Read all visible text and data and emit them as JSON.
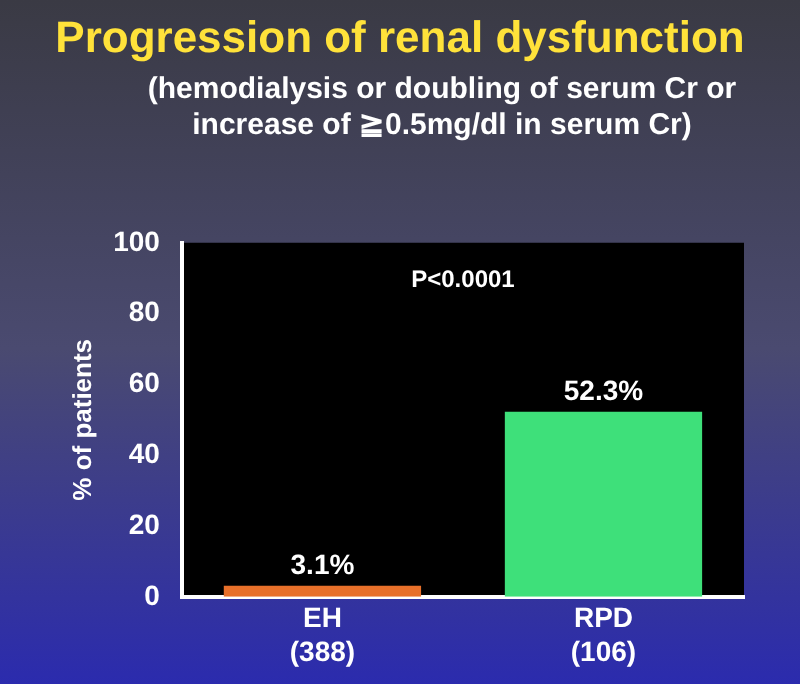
{
  "chart_data": {
    "type": "bar",
    "title": "Progression of renal dysfunction",
    "subtitle": "(hemodialysis or doubling of serum Cr or increase of ≧0.5mg/dl in serum Cr)",
    "ylabel": "% of patients",
    "categories": [
      "EH\n(388)",
      "RPD\n(106)"
    ],
    "values": [
      3.1,
      52.3
    ],
    "colors": [
      "#e8702a",
      "#3ee07a"
    ],
    "value_labels": [
      "3.1%",
      "52.3%"
    ],
    "ylim": [
      0,
      100
    ],
    "yticks": [
      0,
      20,
      40,
      60,
      80,
      100
    ],
    "grid": false,
    "legend": false,
    "annotations": [
      "P<0.0001"
    ]
  }
}
